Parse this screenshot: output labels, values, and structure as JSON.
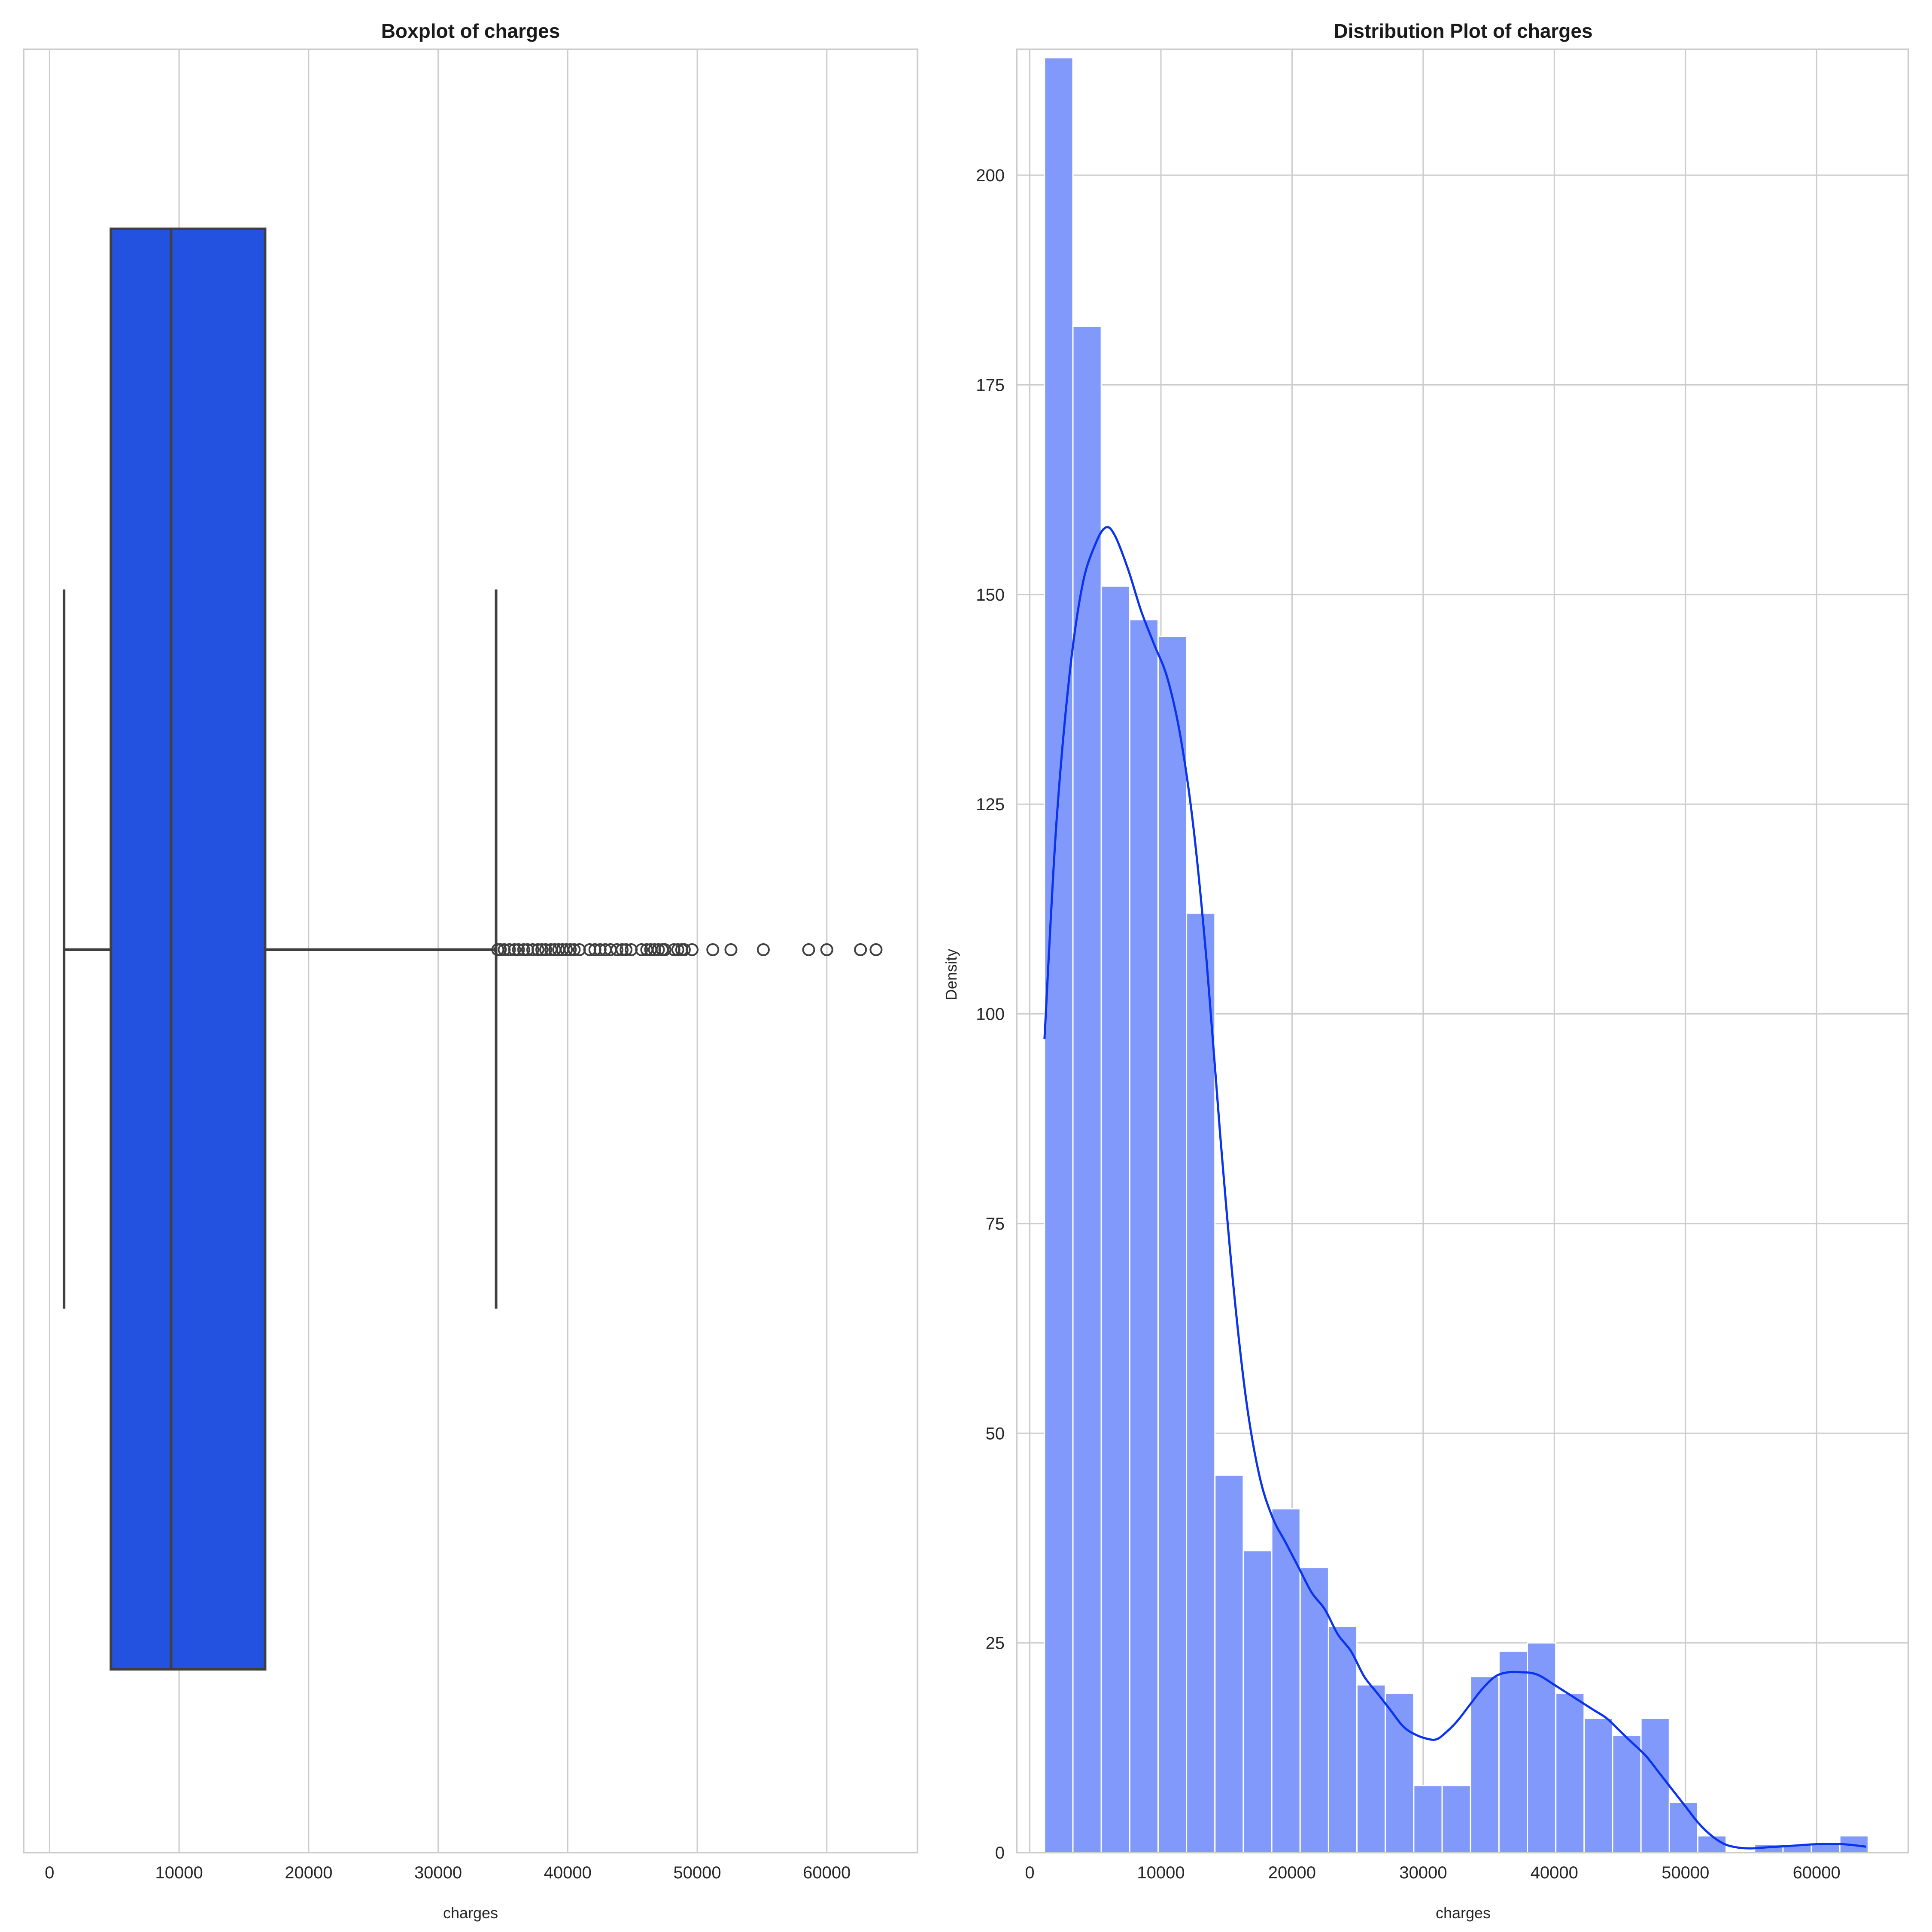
{
  "colors": {
    "box_fill": "#2351e0",
    "box_line": "#3f3f3f",
    "hist_fill": "#8099fa",
    "hist_edge": "#ffffff",
    "kde_line": "#0a33f0",
    "grid": "#cccccc",
    "frame": "#cccccc"
  },
  "chart_data": [
    {
      "type": "box",
      "title": "Boxplot of charges",
      "xlabel": "charges",
      "ylabel": "",
      "xlim": [
        -2000,
        67000
      ],
      "xticks": [
        0,
        10000,
        20000,
        30000,
        40000,
        50000,
        60000
      ],
      "xtick_labels": [
        "0",
        "10000",
        "20000",
        "30000",
        "40000",
        "50000",
        "60000"
      ],
      "grid": true,
      "box": {
        "whisker_low": 1122,
        "q1": 4740,
        "median": 9382,
        "q3": 16640,
        "whisker_high": 34472
      },
      "outliers": [
        34600,
        34800,
        35100,
        35500,
        35900,
        36200,
        36600,
        36900,
        37300,
        37700,
        38000,
        38300,
        38700,
        39000,
        39300,
        39600,
        39900,
        40200,
        40500,
        40900,
        41700,
        42100,
        42500,
        42900,
        43300,
        43800,
        44200,
        44500,
        44900,
        45700,
        46100,
        46400,
        46700,
        47000,
        47300,
        47500,
        48200,
        48500,
        48800,
        49000,
        49600,
        51200,
        52600,
        55100,
        58600,
        60000,
        62600,
        63800
      ]
    },
    {
      "type": "histogram",
      "title": "Distribution Plot of charges",
      "xlabel": "charges",
      "ylabel": "Density",
      "xlim": [
        -1000,
        67000
      ],
      "ylim": [
        0,
        215
      ],
      "xticks": [
        0,
        10000,
        20000,
        30000,
        40000,
        50000,
        60000
      ],
      "xtick_labels": [
        "0",
        "10000",
        "20000",
        "30000",
        "40000",
        "50000",
        "60000"
      ],
      "yticks": [
        0,
        25,
        50,
        75,
        100,
        125,
        150,
        175,
        200
      ],
      "ytick_labels": [
        "0",
        "25",
        "50",
        "75",
        "100",
        "125",
        "150",
        "175",
        "200"
      ],
      "grid": true,
      "bin_start": 1122,
      "bin_width": 2166,
      "counts": [
        214,
        182,
        151,
        147,
        145,
        112,
        45,
        36,
        41,
        34,
        27,
        20,
        19,
        8,
        8,
        21,
        24,
        25,
        19,
        16,
        14,
        16,
        6,
        2,
        0,
        1,
        1,
        1,
        2
      ],
      "kde": {
        "x": [
          1122,
          2000,
          3000,
          4000,
          5000,
          5800,
          6500,
          7500,
          8500,
          9500,
          10500,
          11500,
          12500,
          13500,
          14500,
          15500,
          16500,
          17500,
          18500,
          19500,
          20500,
          21500,
          22500,
          23500,
          24500,
          25500,
          26500,
          27500,
          28500,
          29500,
          30500,
          31000,
          31500,
          32500,
          33500,
          34500,
          35500,
          36500,
          37500,
          38300,
          39000,
          40000,
          41000,
          42000,
          43000,
          44000,
          45000,
          46000,
          47000,
          48000,
          49000,
          50000,
          51000,
          52000,
          53000,
          54000,
          55000,
          56000,
          58000,
          60000,
          62000,
          63770
        ],
        "y": [
          97,
          122,
          140,
          151,
          156,
          158,
          157,
          153,
          148,
          144,
          140,
          133,
          122,
          106,
          86,
          68,
          54,
          45,
          40,
          37,
          34,
          31,
          29,
          26,
          24,
          21,
          19,
          17,
          15,
          14,
          13.5,
          13.5,
          14,
          15.5,
          17.5,
          19.5,
          21,
          21.5,
          21.5,
          21.4,
          21,
          20,
          19,
          18,
          17,
          16,
          14.5,
          13,
          11.5,
          9.5,
          7.5,
          5.5,
          3.5,
          2,
          1,
          0.6,
          0.5,
          0.6,
          0.8,
          1,
          1,
          0.7
        ]
      }
    }
  ]
}
